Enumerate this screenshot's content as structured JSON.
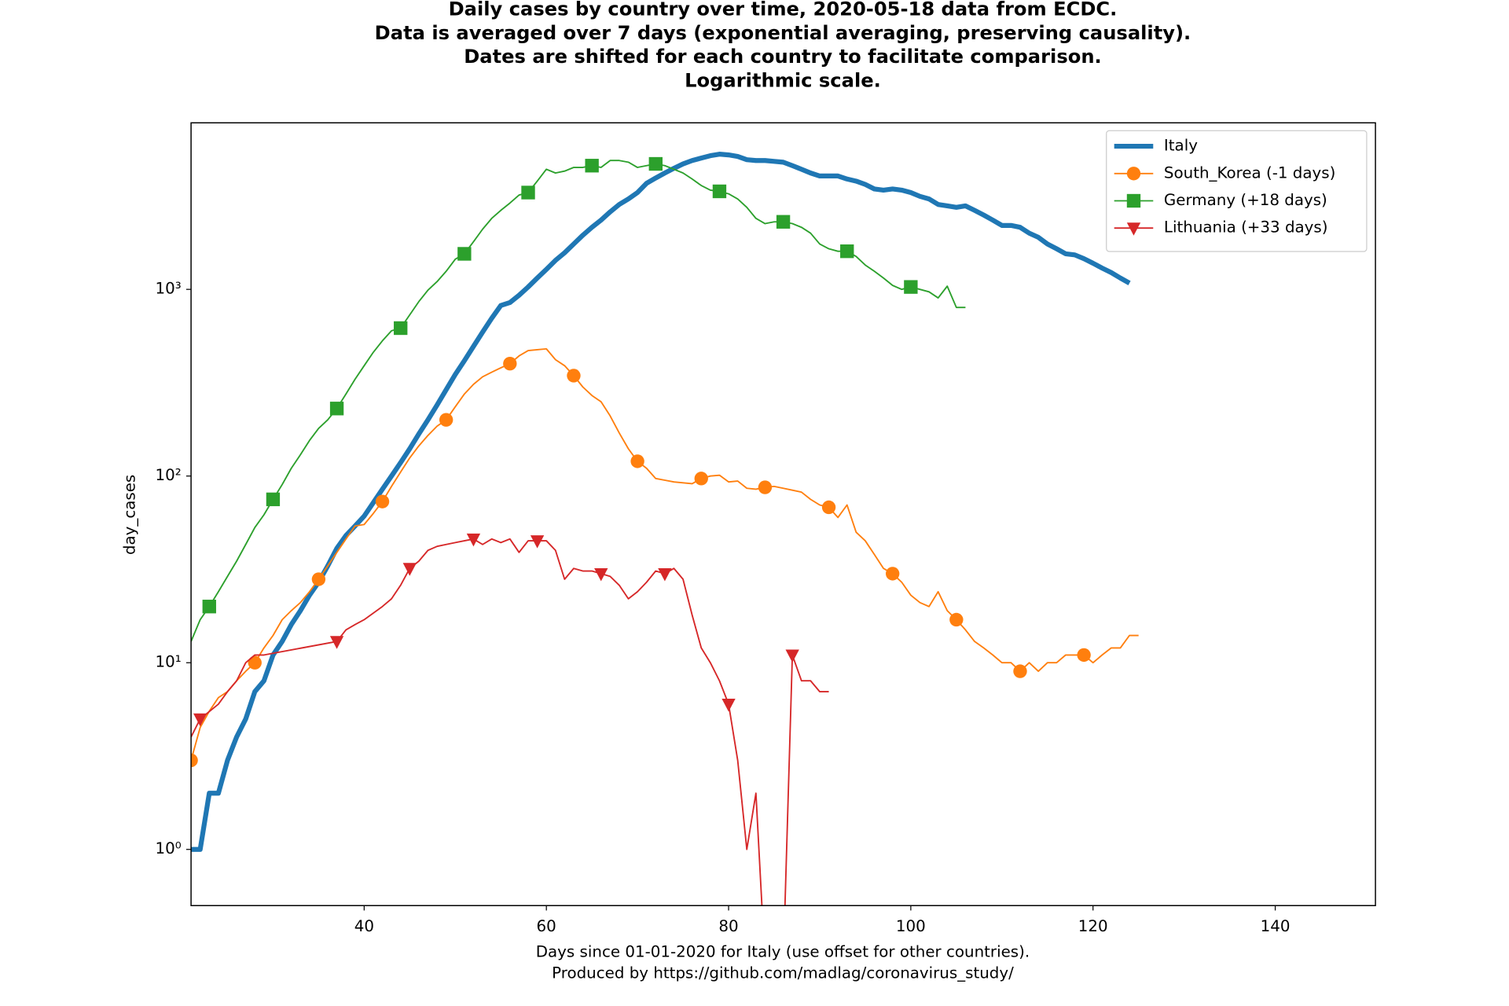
{
  "chart_data": {
    "type": "line",
    "title": [
      "Daily cases by country over time, 2020-05-18 data from ECDC.",
      "Data is averaged over 7 days (exponential averaging, preserving causality).",
      "Dates are shifted for each country to facilitate comparison.",
      "Logarithmic scale."
    ],
    "xlabel": [
      "Days since 01-01-2020 for Italy (use offset for other countries).",
      "Produced by https://github.com/madlag/coronavirus_study/"
    ],
    "ylabel": "day_cases",
    "xlim": [
      21,
      151
    ],
    "ylim": [
      0.5,
      7800
    ],
    "yscale": "log",
    "xticks": [
      40,
      60,
      80,
      100,
      120,
      140
    ],
    "yticks": [
      {
        "value": 1,
        "label": "10⁰"
      },
      {
        "value": 10,
        "label": "10¹"
      },
      {
        "value": 100,
        "label": "10²"
      },
      {
        "value": 1000,
        "label": "10³"
      }
    ],
    "legend": "upper right",
    "series": [
      {
        "name": "Italy",
        "color": "#1f77b4",
        "linewidth": 5,
        "marker": "none",
        "x": [
          21,
          22,
          23,
          24,
          25,
          26,
          27,
          28,
          29,
          30,
          31,
          32,
          33,
          34,
          35,
          36,
          37,
          38,
          39,
          40,
          41,
          42,
          43,
          44,
          45,
          46,
          47,
          48,
          49,
          50,
          51,
          52,
          53,
          54,
          55,
          56,
          57,
          58,
          59,
          60,
          61,
          62,
          63,
          64,
          65,
          66,
          67,
          68,
          69,
          70,
          71,
          72,
          73,
          74,
          75,
          76,
          77,
          78,
          79,
          80,
          81,
          82,
          83,
          84,
          85,
          86,
          87,
          88,
          89,
          90,
          91,
          92,
          93,
          94,
          95,
          96,
          97,
          98,
          99,
          100,
          101,
          102,
          103,
          104,
          105,
          106,
          107,
          108,
          109,
          110,
          111,
          112,
          113,
          114,
          115,
          116,
          117,
          118,
          119,
          120,
          121,
          122,
          123,
          124
        ],
        "values": [
          1,
          1,
          2,
          2,
          3,
          4,
          5,
          7,
          8,
          11,
          13,
          16,
          19,
          23,
          27,
          33,
          41,
          48,
          54,
          61,
          72,
          85,
          100,
          118,
          140,
          168,
          200,
          240,
          290,
          350,
          415,
          495,
          590,
          700,
          820,
          850,
          930,
          1030,
          1150,
          1280,
          1430,
          1570,
          1750,
          1950,
          2150,
          2350,
          2600,
          2850,
          3050,
          3300,
          3700,
          3950,
          4200,
          4450,
          4700,
          4900,
          5050,
          5200,
          5300,
          5250,
          5150,
          4950,
          4900,
          4900,
          4850,
          4800,
          4600,
          4400,
          4200,
          4050,
          4050,
          4050,
          3900,
          3800,
          3650,
          3450,
          3400,
          3450,
          3400,
          3300,
          3150,
          3050,
          2850,
          2800,
          2750,
          2800,
          2650,
          2500,
          2350,
          2200,
          2200,
          2150,
          2000,
          1900,
          1750,
          1650,
          1550,
          1530,
          1460,
          1380,
          1300,
          1230,
          1150,
          1080
        ]
      },
      {
        "name": "South_Korea (-1 days)",
        "color": "#ff7f0e",
        "linewidth": 1.5,
        "marker": "circle",
        "markevery": [
          0,
          7
        ],
        "x": [
          21,
          22,
          23,
          24,
          25,
          26,
          27,
          28,
          29,
          30,
          31,
          32,
          33,
          34,
          35,
          36,
          37,
          38,
          39,
          40,
          41,
          42,
          43,
          44,
          45,
          46,
          47,
          48,
          49,
          50,
          51,
          52,
          53,
          54,
          55,
          56,
          57,
          58,
          59,
          60,
          61,
          62,
          63,
          64,
          65,
          66,
          67,
          68,
          69,
          70,
          71,
          72,
          73,
          74,
          75,
          76,
          77,
          78,
          79,
          80,
          81,
          82,
          83,
          84,
          85,
          86,
          87,
          88,
          89,
          90,
          91,
          92,
          93,
          94,
          95,
          96,
          97,
          98,
          99,
          100,
          101,
          102,
          103,
          104,
          105,
          106,
          107,
          108,
          109,
          110,
          111,
          112,
          113,
          114,
          115,
          116,
          117,
          118,
          119,
          120,
          121,
          122,
          123,
          124,
          125
        ],
        "values": [
          3,
          4.5,
          5.5,
          6.5,
          7,
          8,
          9,
          10,
          12,
          14,
          17,
          19,
          21,
          24,
          28,
          33,
          39,
          46,
          54,
          55,
          63,
          73,
          88,
          105,
          125,
          145,
          165,
          185,
          200,
          235,
          275,
          310,
          340,
          360,
          380,
          400,
          440,
          470,
          475,
          480,
          420,
          390,
          345,
          300,
          270,
          250,
          210,
          170,
          140,
          120,
          110,
          97,
          95,
          93,
          92,
          91,
          97,
          100,
          101,
          93,
          94,
          86,
          85,
          87,
          88,
          86,
          84,
          82,
          75,
          70,
          68,
          60,
          70,
          50,
          45,
          38,
          32,
          30,
          27,
          23,
          21,
          20,
          24,
          19,
          17,
          15,
          13,
          12,
          11,
          10,
          10,
          9,
          10,
          9,
          10,
          10,
          11,
          11,
          11,
          10,
          11,
          12,
          12,
          14,
          14
        ]
      },
      {
        "name": "Germany (+18 days)",
        "color": "#2ca02c",
        "linewidth": 1.5,
        "marker": "square",
        "markevery": [
          2,
          7
        ],
        "x": [
          21,
          22,
          23,
          24,
          25,
          26,
          27,
          28,
          29,
          30,
          31,
          32,
          33,
          34,
          35,
          36,
          37,
          38,
          39,
          40,
          41,
          42,
          43,
          44,
          45,
          46,
          47,
          48,
          49,
          50,
          51,
          52,
          53,
          54,
          55,
          56,
          57,
          58,
          59,
          60,
          61,
          62,
          63,
          64,
          65,
          66,
          67,
          68,
          69,
          70,
          71,
          72,
          73,
          74,
          75,
          76,
          77,
          78,
          79,
          80,
          81,
          82,
          83,
          84,
          85,
          86,
          87,
          88,
          89,
          90,
          91,
          92,
          93,
          94,
          95,
          96,
          97,
          98,
          99,
          100,
          101,
          102,
          103,
          104,
          105,
          106
        ],
        "values": [
          13,
          17,
          20,
          24,
          29,
          35,
          43,
          53,
          62,
          75,
          90,
          110,
          130,
          155,
          180,
          200,
          230,
          275,
          330,
          390,
          460,
          530,
          600,
          620,
          730,
          860,
          990,
          1100,
          1250,
          1450,
          1550,
          1800,
          2100,
          2400,
          2650,
          2900,
          3200,
          3300,
          3800,
          4400,
          4200,
          4300,
          4500,
          4500,
          4600,
          4500,
          4900,
          4900,
          4800,
          4500,
          4600,
          4700,
          4600,
          4400,
          4200,
          3900,
          3600,
          3400,
          3350,
          3250,
          3050,
          2750,
          2400,
          2250,
          2300,
          2300,
          2250,
          2150,
          2000,
          1750,
          1650,
          1600,
          1600,
          1500,
          1350,
          1250,
          1150,
          1050,
          1000,
          1030,
          1000,
          970,
          900,
          1040,
          800,
          800
        ]
      },
      {
        "name": "Lithuania (+33 days)",
        "color": "#d62728",
        "linewidth": 1.5,
        "marker": "triangle-down",
        "markevery": [
          1,
          7
        ],
        "x": [
          21,
          22,
          24,
          25,
          26,
          27,
          28,
          29,
          37,
          38,
          39,
          40,
          42,
          43,
          44,
          45,
          46,
          47,
          48,
          49,
          50,
          51,
          52,
          53,
          54,
          55,
          56,
          57,
          58,
          59,
          60,
          61,
          62,
          63,
          64,
          65,
          66,
          67,
          68,
          69,
          70,
          71,
          72,
          73,
          74,
          75,
          76,
          77,
          78,
          79,
          80,
          81,
          82,
          83,
          84,
          85,
          86,
          87,
          88,
          89,
          90,
          91
        ],
        "values": [
          4,
          5,
          6,
          7,
          8,
          10,
          11,
          11,
          13,
          15,
          16,
          17,
          20,
          22,
          26,
          32,
          35,
          40,
          42,
          43,
          44,
          45,
          46,
          43,
          46,
          44,
          46,
          39,
          45,
          45,
          45,
          40,
          28,
          32,
          31,
          31,
          30,
          29,
          26,
          22,
          24,
          27,
          31,
          30,
          32,
          28,
          18,
          12,
          10,
          8,
          6,
          3,
          1,
          2,
          0,
          0,
          0,
          11,
          8,
          8,
          7,
          7
        ]
      }
    ]
  }
}
